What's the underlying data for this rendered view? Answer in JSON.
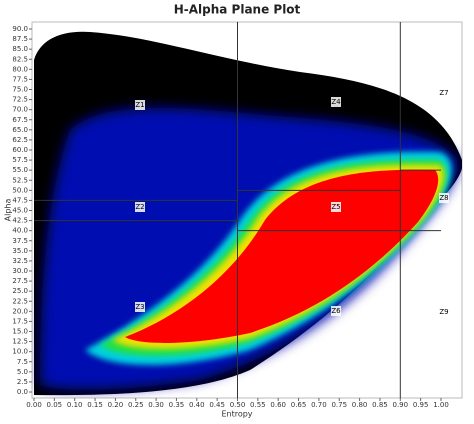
{
  "chart_data": {
    "type": "density",
    "title": "H-Alpha Plane Plot",
    "x_label": "Entropy",
    "y_label": "Alpha",
    "xlim": [
      0,
      1
    ],
    "ylim": [
      0,
      90
    ],
    "xticks": [
      {
        "value": 0,
        "label": "0.00"
      },
      {
        "value": 0.05,
        "label": "0.05"
      },
      {
        "value": 0.1,
        "label": "0.10"
      },
      {
        "value": 0.15,
        "label": "0.15"
      },
      {
        "value": 0.2,
        "label": "0.20"
      },
      {
        "value": 0.25,
        "label": "0.25"
      },
      {
        "value": 0.3,
        "label": "0.30"
      },
      {
        "value": 0.35,
        "label": "0.35"
      },
      {
        "value": 0.4,
        "label": "0.40"
      },
      {
        "value": 0.45,
        "label": "0.45"
      },
      {
        "value": 0.5,
        "label": "0.50"
      },
      {
        "value": 0.55,
        "label": "0.55"
      },
      {
        "value": 0.6,
        "label": "0.60"
      },
      {
        "value": 0.65,
        "label": "0.65"
      },
      {
        "value": 0.7,
        "label": "0.70"
      },
      {
        "value": 0.75,
        "label": "0.75"
      },
      {
        "value": 0.8,
        "label": "0.80"
      },
      {
        "value": 0.85,
        "label": "0.85"
      },
      {
        "value": 0.9,
        "label": "0.90"
      },
      {
        "value": 0.95,
        "label": "0.95"
      },
      {
        "value": 1,
        "label": "1.00"
      }
    ],
    "yticks": [
      {
        "value": 0,
        "label": "0.0"
      },
      {
        "value": 2.5,
        "label": "2.5"
      },
      {
        "value": 5,
        "label": "5.0"
      },
      {
        "value": 7.5,
        "label": "7.5"
      },
      {
        "value": 10,
        "label": "10.0"
      },
      {
        "value": 12.5,
        "label": "12.5"
      },
      {
        "value": 15,
        "label": "15.0"
      },
      {
        "value": 17.5,
        "label": "17.5"
      },
      {
        "value": 20,
        "label": "20.0"
      },
      {
        "value": 22.5,
        "label": "22.5"
      },
      {
        "value": 25,
        "label": "25.0"
      },
      {
        "value": 27.5,
        "label": "27.5"
      },
      {
        "value": 30,
        "label": "30.0"
      },
      {
        "value": 32.5,
        "label": "32.5"
      },
      {
        "value": 35,
        "label": "35.0"
      },
      {
        "value": 37.5,
        "label": "37.5"
      },
      {
        "value": 40,
        "label": "40.0"
      },
      {
        "value": 42.5,
        "label": "42.5"
      },
      {
        "value": 45,
        "label": "45.0"
      },
      {
        "value": 47.5,
        "label": "47.5"
      },
      {
        "value": 50,
        "label": "50.0"
      },
      {
        "value": 52.5,
        "label": "52.5"
      },
      {
        "value": 55,
        "label": "55.0"
      },
      {
        "value": 57.5,
        "label": "57.5"
      },
      {
        "value": 60,
        "label": "60.0"
      },
      {
        "value": 62.5,
        "label": "62.5"
      },
      {
        "value": 65,
        "label": "65.0"
      },
      {
        "value": 67.5,
        "label": "67.5"
      },
      {
        "value": 70,
        "label": "70.0"
      },
      {
        "value": 72.5,
        "label": "72.5"
      },
      {
        "value": 75,
        "label": "75.0"
      },
      {
        "value": 77.5,
        "label": "77.5"
      },
      {
        "value": 80,
        "label": "80.0"
      },
      {
        "value": 82.5,
        "label": "82.5"
      },
      {
        "value": 85,
        "label": "85.0"
      },
      {
        "value": 87.5,
        "label": "87.5"
      },
      {
        "value": 90,
        "label": "90.0"
      }
    ],
    "zone_verticals": [
      0.5,
      0.9
    ],
    "zone_horizontals": [
      {
        "x": [
          0,
          0.5
        ],
        "y": 47.5
      },
      {
        "x": [
          0,
          0.5
        ],
        "y": 42.5
      },
      {
        "x": [
          0.5,
          0.9
        ],
        "y": 50
      },
      {
        "x": [
          0.5,
          0.9
        ],
        "y": 40
      },
      {
        "x": [
          0.9,
          1
        ],
        "y": 55
      },
      {
        "x": [
          0.9,
          1
        ],
        "y": 40
      }
    ],
    "zones": [
      "Z1",
      "Z2",
      "Z3",
      "Z4",
      "Z5",
      "Z6",
      "Z7",
      "Z8",
      "Z9"
    ]
  }
}
